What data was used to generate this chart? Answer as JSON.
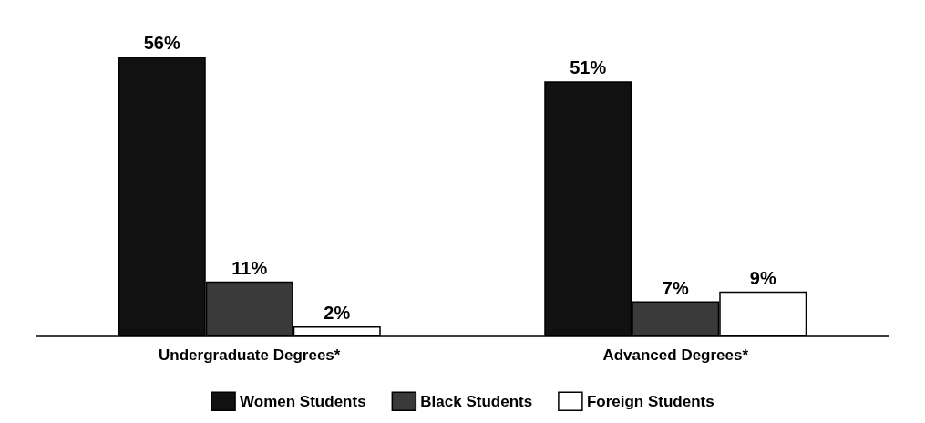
{
  "chart_data": {
    "type": "bar",
    "categories": [
      "Undergraduate Degrees*",
      "Advanced Degrees*"
    ],
    "series": [
      {
        "name": "Women Students",
        "color": "#111111",
        "values": [
          56,
          51
        ],
        "value_labels": [
          "56%",
          "51%"
        ]
      },
      {
        "name": "Black Students",
        "color": "#3a3a3a",
        "values": [
          11,
          7
        ],
        "value_labels": [
          "11%",
          "7%"
        ]
      },
      {
        "name": "Foreign Students",
        "color": "#ffffff",
        "values": [
          2,
          9
        ],
        "value_labels": [
          "2%",
          "9%"
        ]
      }
    ],
    "legend": "bottom",
    "grid": false
  }
}
